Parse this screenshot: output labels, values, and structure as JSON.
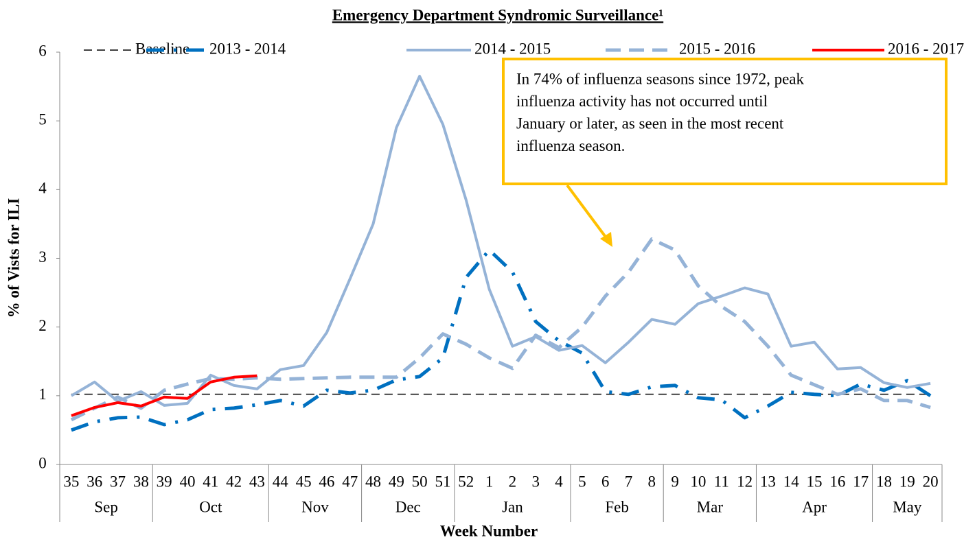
{
  "chart_data": {
    "type": "line",
    "title": "Emergency Department Syndromic Surveillance¹",
    "x_label": "Week Number",
    "y_label": "% of Vists for ILI",
    "categories": [
      "35",
      "36",
      "37",
      "38",
      "39",
      "40",
      "41",
      "42",
      "43",
      "44",
      "45",
      "46",
      "47",
      "48",
      "49",
      "50",
      "51",
      "52",
      "1",
      "2",
      "3",
      "4",
      "5",
      "6",
      "7",
      "8",
      "9",
      "10",
      "11",
      "12",
      "13",
      "14",
      "15",
      "16",
      "17",
      "18",
      "19",
      "20"
    ],
    "category_groups": [
      "Sep",
      "Sep",
      "Sep",
      "Sep",
      "Oct",
      "Oct",
      "Oct",
      "Oct",
      "Oct",
      "Nov",
      "Nov",
      "Nov",
      "Nov",
      "Dec",
      "Dec",
      "Dec",
      "Dec",
      "Jan",
      "Jan",
      "Jan",
      "Jan",
      "Jan",
      "Feb",
      "Feb",
      "Feb",
      "Feb",
      "Mar",
      "Mar",
      "Mar",
      "Mar",
      "Apr",
      "Apr",
      "Apr",
      "Apr",
      "Apr",
      "May",
      "May",
      "May"
    ],
    "ylim": [
      0,
      6
    ],
    "yticks": [
      0,
      1,
      2,
      3,
      4,
      5,
      6
    ],
    "legend": "top",
    "series": [
      {
        "name": "Baseline",
        "color": "#404040",
        "style": "dashed",
        "values": [
          1.02,
          1.02,
          1.02,
          1.02,
          1.02,
          1.02,
          1.02,
          1.02,
          1.02,
          1.02,
          1.02,
          1.02,
          1.02,
          1.02,
          1.02,
          1.02,
          1.02,
          1.02,
          1.02,
          1.02,
          1.02,
          1.02,
          1.02,
          1.02,
          1.02,
          1.02,
          1.02,
          1.02,
          1.02,
          1.02,
          1.02,
          1.02,
          1.02,
          1.02,
          1.02,
          1.02,
          1.02,
          1.02
        ]
      },
      {
        "name": "2013 - 2014",
        "color": "#0070c0",
        "style": "dash-dot",
        "values": [
          0.5,
          0.62,
          0.68,
          0.69,
          0.58,
          0.65,
          0.8,
          0.82,
          0.87,
          0.93,
          0.85,
          1.08,
          1.04,
          1.08,
          1.23,
          1.28,
          1.55,
          2.72,
          3.12,
          2.8,
          2.08,
          1.8,
          1.62,
          1.06,
          1.02,
          1.13,
          1.15,
          0.97,
          0.94,
          0.68,
          0.85,
          1.05,
          1.02,
          1.0,
          1.17,
          1.08,
          1.22,
          1.0
        ]
      },
      {
        "name": "2014 - 2015",
        "color": "#95b3d7",
        "style": "solid",
        "values": [
          1.0,
          1.2,
          0.92,
          1.06,
          0.86,
          0.89,
          1.3,
          1.15,
          1.1,
          1.38,
          1.44,
          1.92,
          2.7,
          3.5,
          4.9,
          5.65,
          4.95,
          3.85,
          2.55,
          1.72,
          1.86,
          1.66,
          1.73,
          1.48,
          1.78,
          2.11,
          2.04,
          2.34,
          2.45,
          2.57,
          2.48,
          1.72,
          1.78,
          1.39,
          1.41,
          1.19,
          1.12,
          1.18
        ]
      },
      {
        "name": "2015 - 2016",
        "color": "#95b3d7",
        "style": "dashed",
        "values": [
          0.65,
          0.82,
          0.98,
          0.82,
          1.08,
          1.17,
          1.25,
          1.24,
          1.26,
          1.24,
          1.25,
          1.26,
          1.27,
          1.27,
          1.27,
          1.55,
          1.9,
          1.75,
          1.55,
          1.4,
          1.88,
          1.7,
          2.0,
          2.45,
          2.8,
          3.28,
          3.12,
          2.6,
          2.3,
          2.08,
          1.72,
          1.3,
          1.16,
          1.02,
          1.1,
          0.93,
          0.93,
          0.83
        ]
      },
      {
        "name": "2016 - 2017",
        "color": "#ff0000",
        "style": "solid",
        "values": [
          0.71,
          0.83,
          0.9,
          0.85,
          0.98,
          0.96,
          1.2,
          1.27,
          1.29,
          null,
          null,
          null,
          null,
          null,
          null,
          null,
          null,
          null,
          null,
          null,
          null,
          null,
          null,
          null,
          null,
          null,
          null,
          null,
          null,
          null,
          null,
          null,
          null,
          null,
          null,
          null,
          null,
          null
        ]
      }
    ],
    "annotation": [
      "In 74% of influenza seasons since 1972, peak",
      "influenza activity has not occurred until",
      "January or later, as seen in the most recent",
      "influenza season."
    ],
    "annotation_color": "#ffc000"
  }
}
